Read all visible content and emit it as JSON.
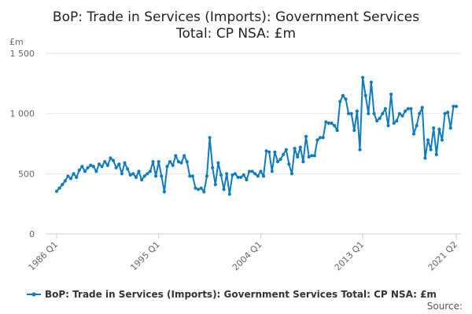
{
  "chart_data": {
    "type": "line",
    "title": [
      "BoP: Trade in Services (Imports): Government Services",
      "Total: CP NSA: £m"
    ],
    "ylabel_unit": "£m",
    "ylim": [
      0,
      1500
    ],
    "yticks": [
      0,
      500,
      1000,
      1500
    ],
    "ytick_labels": [
      "0",
      "500",
      "1 000",
      "1 500"
    ],
    "xtick_labels": [
      "1986 Q1",
      "1995 Q1",
      "2004 Q1",
      "2013 Q1",
      "2021 Q2"
    ],
    "xtick_indices": [
      0,
      36,
      72,
      108,
      141
    ],
    "x_start": "1986 Q1",
    "x_end": "2021 Q2",
    "series": [
      {
        "name": "BoP: Trade in Services (Imports): Government Services Total: CP NSA: £m",
        "color": "#0f7bbf",
        "values": [
          355,
          380,
          410,
          440,
          480,
          460,
          500,
          470,
          530,
          560,
          520,
          550,
          570,
          560,
          520,
          580,
          560,
          600,
          570,
          630,
          610,
          550,
          580,
          500,
          590,
          540,
          490,
          500,
          470,
          520,
          450,
          480,
          500,
          520,
          600,
          480,
          600,
          480,
          350,
          560,
          600,
          570,
          650,
          600,
          590,
          650,
          600,
          480,
          480,
          380,
          370,
          380,
          350,
          480,
          800,
          550,
          410,
          590,
          490,
          370,
          500,
          330,
          490,
          500,
          470,
          470,
          490,
          450,
          520,
          520,
          500,
          480,
          520,
          480,
          690,
          680,
          520,
          680,
          600,
          620,
          660,
          700,
          580,
          500,
          710,
          640,
          720,
          600,
          810,
          640,
          650,
          650,
          780,
          800,
          800,
          930,
          920,
          920,
          900,
          860,
          1100,
          1150,
          1120,
          1000,
          1000,
          860,
          1020,
          700,
          1300,
          1150,
          1000,
          1260,
          1000,
          940,
          960,
          1000,
          1040,
          900,
          1160,
          920,
          940,
          1000,
          980,
          1020,
          1040,
          1040,
          830,
          900,
          1000,
          1050,
          630,
          780,
          700,
          880,
          660,
          870,
          780,
          1000,
          1010,
          880,
          1060,
          1060
        ]
      }
    ]
  },
  "legend": {
    "label": "BoP: Trade in Services (Imports): Government Services Total: CP NSA: £m"
  },
  "source": {
    "label": "Source:"
  }
}
